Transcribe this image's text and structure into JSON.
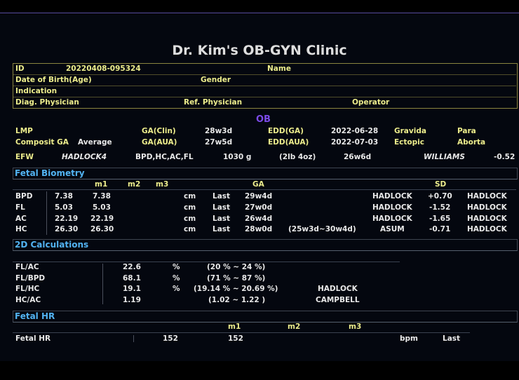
{
  "clinic_title": "Dr. Kim's OB-GYN Clinic",
  "patient": {
    "id_label": "ID",
    "id_value": "20220408-095324",
    "name_label": "Name",
    "dob_label": "Date of Birth(Age)",
    "gender_label": "Gender",
    "indication_label": "Indication",
    "diag_label": "Diag. Physician",
    "ref_label": "Ref. Physician",
    "operator_label": "Operator"
  },
  "ob": {
    "heading": "OB",
    "lmp_label": "LMP",
    "ga_clin_label": "GA(Clin)",
    "ga_clin_value": "28w3d",
    "edd_ga_label": "EDD(GA)",
    "edd_ga_value": "2022-06-28",
    "gravida_label": "Gravida",
    "para_label": "Para",
    "composit_label": "Composit GA",
    "composit_value": "Average",
    "ga_aua_label": "GA(AUA)",
    "ga_aua_value": "27w5d",
    "edd_aua_label": "EDD(AUA)",
    "edd_aua_value": "2022-07-03",
    "ectopic_label": "Ectopic",
    "aborta_label": "Aborta",
    "efw_label": "EFW",
    "efw_method": "HADLOCK4",
    "efw_params": "BPD,HC,AC,FL",
    "efw_grams": "1030 g",
    "efw_lb": "(2lb 4oz)",
    "efw_ga": "26w6d",
    "efw_author": "WILLIAMS",
    "efw_sd": "-0.52"
  },
  "fetal_biometry": {
    "heading": "Fetal Biometry",
    "headers": {
      "m1": "m1",
      "m2": "m2",
      "m3": "m3",
      "ga": "GA",
      "sd": "SD"
    },
    "rows": [
      {
        "name": "BPD",
        "value": "7.38",
        "m1": "7.38",
        "unit": "cm",
        "mode": "Last",
        "ga": "29w4d",
        "range": "",
        "method": "HADLOCK",
        "sd": "+0.70",
        "ref": "HADLOCK"
      },
      {
        "name": "FL",
        "value": "5.03",
        "m1": "5.03",
        "unit": "cm",
        "mode": "Last",
        "ga": "27w0d",
        "range": "",
        "method": "HADLOCK",
        "sd": "-1.52",
        "ref": "HADLOCK"
      },
      {
        "name": "AC",
        "value": "22.19",
        "m1": "22.19",
        "unit": "cm",
        "mode": "Last",
        "ga": "26w4d",
        "range": "",
        "method": "HADLOCK",
        "sd": "-1.65",
        "ref": "HADLOCK"
      },
      {
        "name": "HC",
        "value": "26.30",
        "m1": "26.30",
        "unit": "cm",
        "mode": "Last",
        "ga": "28w0d",
        "range": "(25w3d~30w4d)",
        "method": "ASUM",
        "sd": "-0.71",
        "ref": "HADLOCK"
      }
    ]
  },
  "calculations_2d": {
    "heading": "2D Calculations",
    "rows": [
      {
        "name": "FL/AC",
        "value": "22.6",
        "unit": "%",
        "range": "(20 % ~ 24 %)",
        "ref": ""
      },
      {
        "name": "FL/BPD",
        "value": "68.1",
        "unit": "%",
        "range": "(71 % ~ 87 %)",
        "ref": ""
      },
      {
        "name": "FL/HC",
        "value": "19.1",
        "unit": "%",
        "range": "(19.14 % ~ 20.69 %)",
        "ref": "HADLOCK"
      },
      {
        "name": "HC/AC",
        "value": "1.19",
        "unit": "",
        "range": "(1.02  ~ 1.22 )",
        "ref": "CAMPBELL"
      }
    ]
  },
  "fetal_hr": {
    "heading": "Fetal HR",
    "headers": {
      "m1": "m1",
      "m2": "m2",
      "m3": "m3"
    },
    "row": {
      "name": "Fetal HR",
      "value": "152",
      "m1": "152",
      "unit": "bpm",
      "mode": "Last"
    }
  },
  "colors": {
    "background": "#000000",
    "panel": "#04070f",
    "label_yellow": "#eded8c",
    "section_blue": "#52b3f2",
    "ob_purple": "#7c4be8"
  }
}
